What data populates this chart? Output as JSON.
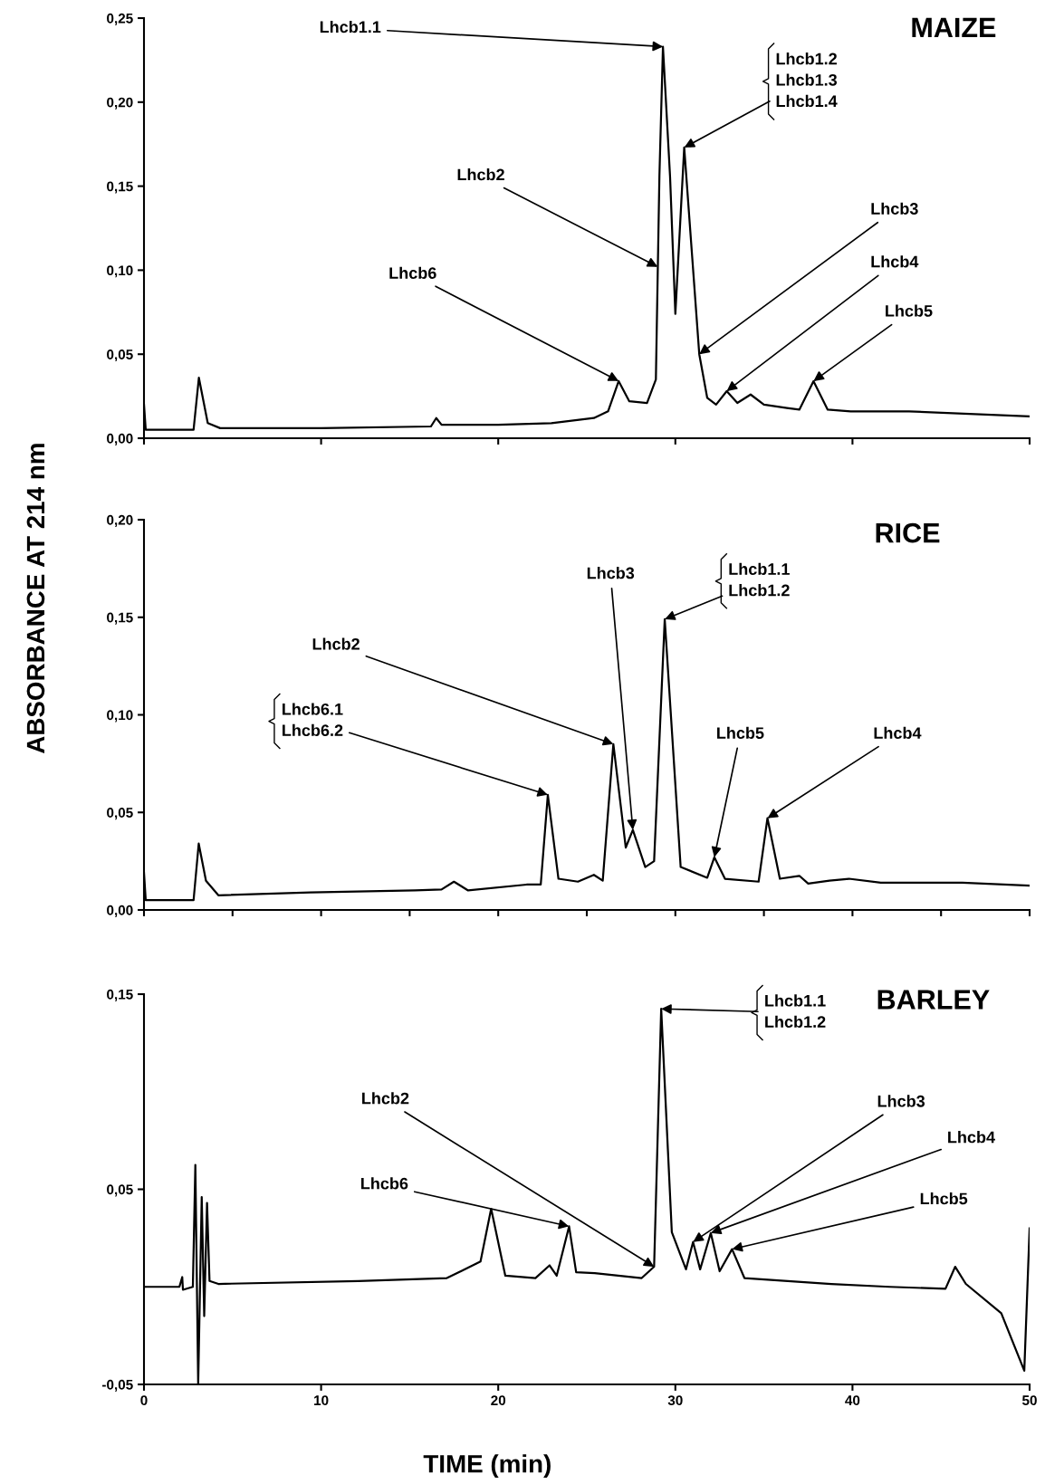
{
  "chart_data": [
    {
      "type": "line",
      "title": "MAIZE",
      "series": [
        {
          "color": "#000000",
          "x": [
            0,
            0.1,
            2.8,
            3.1,
            3.6,
            4.3,
            10,
            16.2,
            16.5,
            16.8,
            20,
            23,
            25.4,
            26.2,
            26.8,
            27.4,
            28.4,
            28.9,
            29.1,
            29.3,
            29.7,
            30.0,
            30.5,
            31.35,
            31.8,
            32.3,
            32.9,
            33.5,
            34.25,
            35.0,
            36.3,
            37.0,
            37.8,
            38.6,
            39.9,
            43.2,
            50
          ],
          "values": [
            0.02,
            0.005,
            0.005,
            0.036,
            0.009,
            0.006,
            0.006,
            0.007,
            0.012,
            0.008,
            0.008,
            0.009,
            0.012,
            0.016,
            0.034,
            0.022,
            0.021,
            0.035,
            0.156,
            0.233,
            0.156,
            0.074,
            0.173,
            0.05,
            0.024,
            0.02,
            0.028,
            0.021,
            0.026,
            0.02,
            0.018,
            0.017,
            0.034,
            0.017,
            0.016,
            0.016,
            0.013
          ]
        }
      ],
      "xlim": [
        0,
        50
      ],
      "xticks": [
        {
          "value": 0,
          "label": null
        },
        {
          "value": 10,
          "label": null
        },
        {
          "value": 20,
          "label": null
        },
        {
          "value": 30,
          "label": null
        },
        {
          "value": 40,
          "label": null
        },
        {
          "value": 50,
          "label": null
        }
      ],
      "ylim": [
        0,
        0.25
      ],
      "yticks": [
        {
          "value": 0,
          "label": "0,00"
        },
        {
          "value": 0.05,
          "label": "0,05"
        },
        {
          "value": 0.1,
          "label": "0,10"
        },
        {
          "value": 0.15,
          "label": "0,15"
        },
        {
          "value": 0.2,
          "label": "0,20"
        },
        {
          "value": 0.25,
          "label": "0,25"
        }
      ],
      "tick_labels": "y",
      "annotations": [
        {
          "text": "Lhcb1.1",
          "x": 29.3,
          "y": 0.233
        },
        {
          "text": "Lhcb1.2\nLhcb1.3\nLhcb1.4",
          "x": 30.5,
          "y": 0.173
        },
        {
          "text": "Lhcb2",
          "x": 29.0,
          "y": 0.102
        },
        {
          "text": "Lhcb6",
          "x": 26.8,
          "y": 0.034
        },
        {
          "text": "Lhcb3",
          "x": 31.35,
          "y": 0.05
        },
        {
          "text": "Lhcb4",
          "x": 32.9,
          "y": 0.028
        },
        {
          "text": "Lhcb5",
          "x": 37.8,
          "y": 0.034
        }
      ]
    },
    {
      "type": "line",
      "title": "RICE",
      "ylabel": "ABSORBANCE AT 214 nm",
      "series": [
        {
          "color": "#000000",
          "x": [
            0,
            0.1,
            2.8,
            3.09,
            3.5,
            4.2,
            9.4,
            15.3,
            16.8,
            17.5,
            18.3,
            21.6,
            22.4,
            22.8,
            23.4,
            24.5,
            25.4,
            25.9,
            26.5,
            27.2,
            27.6,
            28.3,
            28.8,
            29.4,
            30.3,
            31.8,
            32.2,
            32.8,
            34.7,
            35.2,
            35.9,
            37.0,
            37.5,
            38.7,
            39.8,
            41.6,
            46.2,
            50
          ],
          "values": [
            0.019,
            0.005,
            0.005,
            0.034,
            0.015,
            0.0075,
            0.009,
            0.01,
            0.0105,
            0.0145,
            0.01,
            0.013,
            0.013,
            0.059,
            0.016,
            0.0145,
            0.018,
            0.015,
            0.085,
            0.032,
            0.041,
            0.022,
            0.025,
            0.149,
            0.022,
            0.0165,
            0.027,
            0.016,
            0.0145,
            0.047,
            0.016,
            0.0175,
            0.0135,
            0.015,
            0.016,
            0.014,
            0.014,
            0.0125
          ]
        }
      ],
      "xlim": [
        0,
        50
      ],
      "xticks": [
        {
          "value": 0,
          "label": null
        },
        {
          "value": 5,
          "label": null
        },
        {
          "value": 10,
          "label": null
        },
        {
          "value": 15,
          "label": null
        },
        {
          "value": 20,
          "label": null
        },
        {
          "value": 25,
          "label": null
        },
        {
          "value": 30,
          "label": null
        },
        {
          "value": 35,
          "label": null
        },
        {
          "value": 40,
          "label": null
        },
        {
          "value": 45,
          "label": null
        },
        {
          "value": 50,
          "label": null
        }
      ],
      "ylim": [
        0,
        0.2
      ],
      "yticks": [
        {
          "value": 0,
          "label": "0,00"
        },
        {
          "value": 0.05,
          "label": "0,05"
        },
        {
          "value": 0.1,
          "label": "0,10"
        },
        {
          "value": 0.15,
          "label": "0,15"
        },
        {
          "value": 0.2,
          "label": "0,20"
        }
      ],
      "tick_labels": "y",
      "annotations": [
        {
          "text": "Lhcb6.1\nLhcb6.2",
          "x": 22.8,
          "y": 0.059
        },
        {
          "text": "Lhcb2",
          "x": 26.5,
          "y": 0.085
        },
        {
          "text": "Lhcb3",
          "x": 27.6,
          "y": 0.041
        },
        {
          "text": "Lhcb1.1\nLhcb1.2",
          "x": 29.4,
          "y": 0.149
        },
        {
          "text": "Lhcb5",
          "x": 32.2,
          "y": 0.027
        },
        {
          "text": "Lhcb4",
          "x": 35.2,
          "y": 0.047
        }
      ]
    },
    {
      "type": "line",
      "title": "BARLEY",
      "xlabel": "TIME (min)",
      "series": [
        {
          "color": "#000000",
          "x": [
            0,
            2.0,
            2.16,
            2.2,
            2.76,
            2.9,
            3.06,
            3.26,
            3.4,
            3.56,
            3.7,
            4.2,
            12.1,
            17.1,
            19.0,
            19.6,
            20.4,
            22.1,
            22.9,
            23.3,
            24.0,
            24.4,
            25.45,
            28.1,
            28.8,
            29.2,
            29.8,
            30.6,
            31.0,
            31.4,
            32.0,
            32.5,
            33.2,
            33.9,
            38.8,
            42.1,
            45.25,
            45.8,
            46.4,
            48.4,
            49.7,
            50.0
          ],
          "values": [
            0.0,
            0.0,
            0.005,
            -0.0015,
            0.0,
            0.0625,
            -0.05,
            0.046,
            -0.015,
            0.043,
            0.003,
            0.0015,
            0.003,
            0.0045,
            0.013,
            0.04,
            0.0057,
            0.0045,
            0.011,
            0.0057,
            0.031,
            0.0075,
            0.007,
            0.0045,
            0.0103,
            0.1425,
            0.028,
            0.009,
            0.023,
            0.009,
            0.0276,
            0.008,
            0.0193,
            0.0045,
            0.0015,
            0.0,
            -0.001,
            0.0103,
            0.0015,
            -0.0135,
            -0.043,
            0.03
          ]
        }
      ],
      "xlim": [
        0,
        50
      ],
      "xticks": [
        0,
        10,
        20,
        30,
        40,
        50
      ],
      "ylim": [
        -0.05,
        0.15
      ],
      "yticks": [
        {
          "value": -0.05,
          "label": "-0,05"
        },
        {
          "value": 0.05,
          "label": "0,05"
        },
        {
          "value": 0.15,
          "label": "0,15"
        }
      ],
      "annotations": [
        {
          "text": "Lhcb1.1\nLhcb1.2",
          "x": 29.2,
          "y": 0.1425
        },
        {
          "text": "Lhcb2",
          "x": 28.8,
          "y": 0.0103
        },
        {
          "text": "Lhcb6",
          "x": 24.0,
          "y": 0.031
        },
        {
          "text": "Lhcb3",
          "x": 31.0,
          "y": 0.023
        },
        {
          "text": "Lhcb4",
          "x": 32.0,
          "y": 0.0276
        },
        {
          "text": "Lhcb5",
          "x": 33.2,
          "y": 0.0193
        }
      ]
    }
  ]
}
